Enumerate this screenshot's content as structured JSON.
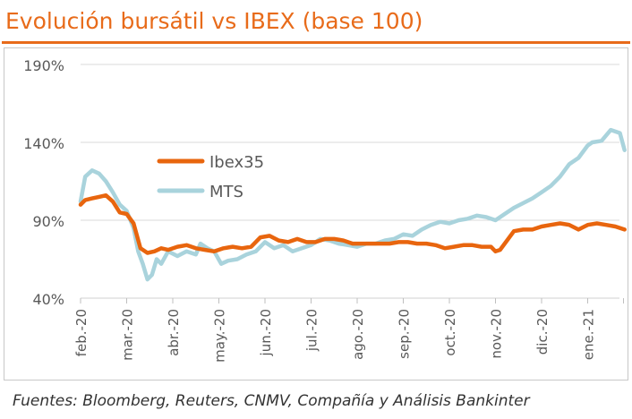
{
  "title": "Evolución bursátil vs IBEX (base 100)",
  "source": "Fuentes: Bloomberg, Reuters, CNMV, Compañía y Análisis Bankinter",
  "colors": {
    "accent": "#e86b1a",
    "ibex": "#e8650e",
    "mts": "#a9d3dc",
    "grid": "#d9d9d9",
    "text": "#595959"
  },
  "chart_data": {
    "type": "line",
    "ylim": [
      40,
      190
    ],
    "yticks": [
      40,
      90,
      140,
      190
    ],
    "ytick_labels": [
      "40%",
      "90%",
      "140%",
      "190%"
    ],
    "grid": "horizontal",
    "legend_placement": "center-left",
    "x_categories": [
      "feb.-20",
      "mar.-20",
      "abr.-20",
      "may.-20",
      "jun.-20",
      "jul.-20",
      "ago.-20",
      "sep.-20",
      "oct.-20",
      "nov.-20",
      "dic.-20",
      "ene.-21"
    ],
    "series": [
      {
        "name": "Ibex35",
        "x": [
          0,
          0.1,
          0.25,
          0.4,
          0.55,
          0.7,
          0.85,
          1.0,
          1.15,
          1.3,
          1.45,
          1.6,
          1.75,
          1.9,
          2.1,
          2.3,
          2.5,
          2.7,
          2.9,
          3.1,
          3.3,
          3.5,
          3.7,
          3.9,
          4.1,
          4.3,
          4.5,
          4.7,
          4.9,
          5.1,
          5.3,
          5.5,
          5.7,
          5.9,
          6.1,
          6.3,
          6.5,
          6.7,
          6.9,
          7.1,
          7.3,
          7.5,
          7.7,
          7.9,
          8.1,
          8.3,
          8.5,
          8.7,
          8.9,
          9.0,
          9.1,
          9.2,
          9.4,
          9.6,
          9.8,
          10.0,
          10.2,
          10.4,
          10.6,
          10.8,
          11.0,
          11.2,
          11.4,
          11.6,
          11.8
        ],
        "values": [
          100,
          103,
          104,
          105,
          106,
          102,
          95,
          94,
          88,
          72,
          69,
          70,
          72,
          71,
          73,
          74,
          72,
          71,
          70,
          72,
          73,
          72,
          73,
          79,
          80,
          77,
          76,
          78,
          76,
          76,
          78,
          78,
          77,
          75,
          75,
          75,
          75,
          75,
          76,
          76,
          75,
          75,
          74,
          72,
          73,
          74,
          74,
          73,
          73,
          70,
          71,
          75,
          83,
          84,
          84,
          86,
          87,
          88,
          87,
          84,
          87,
          88,
          87,
          86,
          84
        ]
      },
      {
        "name": "MTS",
        "x": [
          0,
          0.1,
          0.25,
          0.4,
          0.55,
          0.7,
          0.85,
          1.0,
          1.15,
          1.25,
          1.35,
          1.45,
          1.55,
          1.65,
          1.75,
          1.9,
          2.1,
          2.3,
          2.5,
          2.6,
          2.75,
          2.9,
          3.05,
          3.2,
          3.4,
          3.6,
          3.8,
          4.0,
          4.2,
          4.4,
          4.6,
          4.8,
          5.0,
          5.2,
          5.4,
          5.6,
          5.8,
          6.0,
          6.2,
          6.4,
          6.6,
          6.8,
          7.0,
          7.2,
          7.4,
          7.6,
          7.8,
          8.0,
          8.2,
          8.4,
          8.6,
          8.8,
          9.0,
          9.2,
          9.4,
          9.6,
          9.8,
          10.0,
          10.2,
          10.4,
          10.6,
          10.8,
          11.0,
          11.1,
          11.3,
          11.5,
          11.7,
          11.8
        ],
        "values": [
          102,
          118,
          122,
          120,
          115,
          108,
          100,
          96,
          85,
          70,
          62,
          52,
          55,
          65,
          62,
          70,
          67,
          70,
          68,
          75,
          72,
          70,
          62,
          64,
          65,
          68,
          70,
          76,
          72,
          74,
          70,
          72,
          74,
          78,
          77,
          75,
          74,
          73,
          75,
          75,
          77,
          78,
          81,
          80,
          84,
          87,
          89,
          88,
          90,
          91,
          93,
          92,
          90,
          94,
          98,
          101,
          104,
          108,
          112,
          118,
          126,
          130,
          138,
          140,
          141,
          148,
          146,
          135
        ]
      }
    ]
  }
}
